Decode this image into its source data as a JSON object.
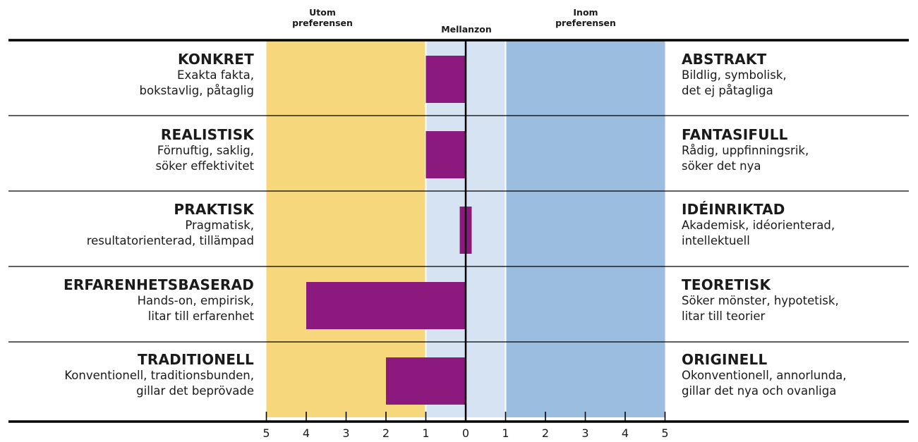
{
  "zone_headers": {
    "outside": "Utom\npreferensen",
    "middle": "Mellanzon",
    "inside": "Inom\npreferensen"
  },
  "colors": {
    "outside_zone": "#f7d77c",
    "middle_zone": "#d6e3f2",
    "inside_zone": "#9bbde0",
    "bar": "#8c1a7e",
    "axis": "#000000"
  },
  "rows": [
    {
      "left_title": "KONKRET",
      "left_desc": [
        "Exakta fakta,",
        "bokstavlig, påtaglig"
      ],
      "right_title": "ABSTRAKT",
      "right_desc": [
        "Bildlig, symbolisk,",
        "det ej påtagliga"
      ]
    },
    {
      "left_title": "REALISTISK",
      "left_desc": [
        "Förnuftig, saklig,",
        "söker effektivitet"
      ],
      "right_title": "FANTASIFULL",
      "right_desc": [
        "Rådig, uppfinningsrik,",
        "söker det nya"
      ]
    },
    {
      "left_title": "PRAKTISK",
      "left_desc": [
        "Pragmatisk,",
        "resultatorienterad, tillämpad"
      ],
      "right_title": "IDÉINRIKTAD",
      "right_desc": [
        "Akademisk, idéorienterad,",
        "intellektuell"
      ]
    },
    {
      "left_title": "ERFARENHETSBASERAD",
      "left_desc": [
        "Hands-on, empirisk,",
        "litar till erfarenhet"
      ],
      "right_title": "TEORETISK",
      "right_desc": [
        "Söker mönster, hypotetisk,",
        "litar till teorier"
      ]
    },
    {
      "left_title": "TRADITIONELL",
      "left_desc": [
        "Konventionell, traditionsbunden,",
        "gillar det beprövade"
      ],
      "right_title": "ORIGINELL",
      "right_desc": [
        "Okonventionell, annorlunda,",
        "gillar det nya och ovanliga"
      ]
    }
  ],
  "chart_data": {
    "type": "bar",
    "orientation": "horizontal",
    "x": [
      -5,
      5
    ],
    "ticks": [
      -5,
      -4,
      -3,
      -2,
      -1,
      0,
      1,
      2,
      3,
      4,
      5
    ],
    "tick_labels": [
      "5",
      "4",
      "3",
      "2",
      "1",
      "0",
      "1",
      "2",
      "3",
      "4",
      "5"
    ],
    "zones": [
      {
        "name": "Utom preferensen",
        "from": -5,
        "to": -1
      },
      {
        "name": "Mellanzon",
        "from": -1,
        "to": 1
      },
      {
        "name": "Inom preferensen",
        "from": 1,
        "to": 5
      }
    ],
    "categories": [
      "KONKRET / ABSTRAKT",
      "REALISTISK / FANTASIFULL",
      "PRAKTISK / IDÉINRIKTAD",
      "ERFARENHETSBASERAD / TEORETISK",
      "TRADITIONELL / ORIGINELL"
    ],
    "bars": [
      {
        "from": -1,
        "to": 0
      },
      {
        "from": -1,
        "to": 0
      },
      {
        "from": -0.15,
        "to": 0.15
      },
      {
        "from": -4,
        "to": 0
      },
      {
        "from": -2,
        "to": 0
      }
    ]
  }
}
